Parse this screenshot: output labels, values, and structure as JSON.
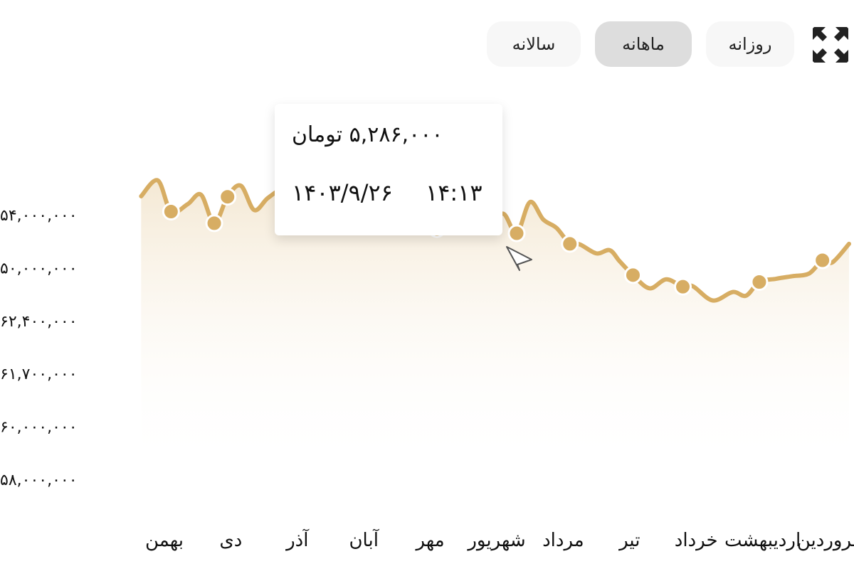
{
  "toolbar": {
    "buttons": [
      {
        "label": "سالانه",
        "active": false
      },
      {
        "label": "ماهانه",
        "active": true
      },
      {
        "label": "روزانه",
        "active": false
      }
    ],
    "expand_icon": "expand-icon"
  },
  "tooltip": {
    "price": "۵,۲۸۶,۰۰۰ تومان",
    "date": "۱۴۰۳/۹/۲۶",
    "time": "۱۴:۱۳"
  },
  "colors": {
    "line": "#d7ad63",
    "area_top": "#f3e6cf",
    "area_bottom": "#ffffff",
    "marker_outline": "#ffffff"
  },
  "chart_data": {
    "type": "area",
    "title": "",
    "xlabel": "",
    "ylabel": "",
    "y_tick_labels": [
      "۵۴,۰۰۰,۰۰۰",
      "۵۰,۰۰۰,۰۰۰",
      "۶۲,۴۰۰,۰۰۰",
      "۶۱,۷۰۰,۰۰۰",
      "۶۰,۰۰۰,۰۰۰",
      "۵۸,۰۰۰,۰۰۰"
    ],
    "categories": [
      "فروردین",
      "اردیبهشت",
      "خرداد",
      "تیر",
      "مرداد",
      "شهریور",
      "مهر",
      "آبان",
      "آذر",
      "دی",
      "بهمن"
    ],
    "y_index_range": [
      0,
      5
    ],
    "grid": false,
    "legend": "none",
    "series": [
      {
        "x_index": [
          -0.3,
          -0.05,
          0.1,
          0.3,
          0.55,
          0.8,
          1.05,
          1.25,
          1.45,
          1.75,
          2.05,
          2.2,
          2.45,
          2.7,
          2.95,
          3.15,
          3.3,
          3.5,
          3.75,
          3.9,
          4.1,
          4.3,
          4.5,
          4.7,
          4.9,
          5.1,
          5.3,
          5.5,
          5.7,
          5.9,
          6.15,
          6.35,
          6.6,
          6.85,
          7.1,
          7.3,
          7.55,
          7.8,
          8.05,
          8.25,
          8.45,
          8.65,
          8.85,
          9.05,
          9.25,
          9.45,
          9.65,
          9.9,
          10.1,
          10.35
        ],
        "y_index": [
          4.45,
          4.1,
          4.14,
          3.89,
          3.84,
          3.79,
          3.73,
          3.47,
          3.54,
          3.38,
          3.65,
          3.64,
          3.78,
          3.61,
          3.86,
          4.12,
          4.33,
          4.27,
          4.44,
          4.45,
          4.75,
          4.91,
          5.24,
          4.65,
          5.02,
          4.78,
          4.73,
          4.83,
          4.73,
          4.73,
          4.85,
          5.03,
          4.96,
          5.29,
          4.66,
          5.13,
          5.0,
          5.25,
          5.46,
          5.47,
          5.31,
          5.09,
          5.55,
          5.34,
          4.84,
          5.38,
          5.2,
          5.06,
          5.65,
          5.35
        ]
      }
    ],
    "markers_x_index": [
      0.1,
      1.05,
      2.2,
      2.95,
      3.9,
      4.7,
      5.1,
      5.9,
      7.3,
      7.55,
      9.05,
      9.25,
      9.9
    ],
    "highlighted_point_x_index": 4.7
  }
}
